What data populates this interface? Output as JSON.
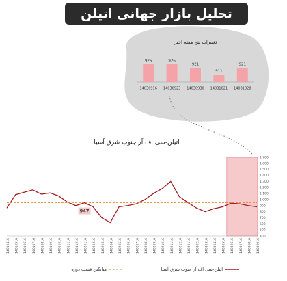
{
  "header": {
    "title": "تحلیل بازار جهانی اتیلن"
  },
  "chart_data": [
    {
      "type": "bar",
      "title": "تغییرات پنج هفته اخیر",
      "categories": [
        "14030916",
        "14030923",
        "14030930",
        "14031021",
        "14031028"
      ],
      "values": [
        926,
        926,
        921,
        911,
        921
      ],
      "color": "#f4a3a8",
      "ylim": [
        900,
        930
      ]
    },
    {
      "type": "line",
      "title": "اتیلن-سی اف آر جنوب شرق آسیا",
      "categories": [
        "14010416",
        "14010516",
        "14010616",
        "14010716",
        "14010816",
        "14010916",
        "14011016",
        "14011116",
        "14011216",
        "14020116",
        "14020216",
        "14020316",
        "14020416",
        "14020516",
        "14020616",
        "14020716",
        "14020816",
        "14020916",
        "14021016",
        "14021116",
        "14021216",
        "14030116",
        "14030216",
        "14030316",
        "14030416",
        "14030516",
        "14030616",
        "14030716",
        "14030816",
        "14030916"
      ],
      "series": [
        {
          "name": "اتیلن-سی اف آر جنوب شرق آسیا",
          "color": "#a31c24",
          "values": [
            860,
            1080,
            1120,
            1160,
            1090,
            1110,
            1060,
            960,
            900,
            947,
            880,
            700,
            620,
            880,
            900,
            930,
            1000,
            1100,
            1180,
            1300,
            1050,
            950,
            860,
            800,
            850,
            880,
            940,
            930,
            900,
            880
          ]
        },
        {
          "name": "میانگین قیمت دوره",
          "color": "#e8862a",
          "value": 950,
          "dashed": true
        }
      ],
      "labeled_points": [
        9
      ],
      "ylim": [
        400,
        1700
      ],
      "yticks": [
        400,
        500,
        600,
        700,
        800,
        900,
        {
          "value": 1000,
          "label": "1,000"
        },
        {
          "value": 1100,
          "label": "1,100"
        },
        {
          "value": 1200,
          "label": "1,200"
        },
        {
          "value": 1300,
          "label": "1,300"
        },
        {
          "value": 1400,
          "label": "1,400"
        },
        {
          "value": 1500,
          "label": "1,500"
        },
        {
          "value": 1600,
          "label": "1,600"
        },
        {
          "value": 1700,
          "label": "1,700"
        }
      ]
    }
  ]
}
